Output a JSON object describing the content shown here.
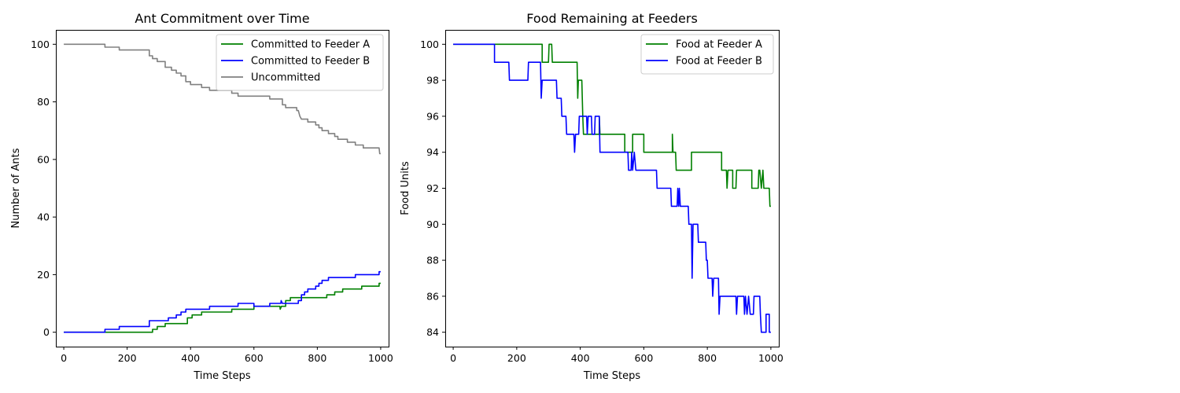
{
  "chart_data": [
    {
      "type": "line",
      "title": "Ant Commitment over Time",
      "xlabel": "Time Steps",
      "ylabel": "Number of Ants",
      "xlim": [
        -25,
        1025
      ],
      "ylim": [
        -5,
        105
      ],
      "xticks": [
        0,
        200,
        400,
        600,
        800,
        1000
      ],
      "yticks": [
        0,
        20,
        40,
        60,
        80,
        100
      ],
      "legend": "upper right",
      "series": [
        {
          "name": "Committed to Feeder A",
          "color": "#008000",
          "points": [
            [
              0,
              0
            ],
            [
              280,
              0
            ],
            [
              280,
              1
            ],
            [
              295,
              1
            ],
            [
              295,
              2
            ],
            [
              320,
              2
            ],
            [
              320,
              3
            ],
            [
              390,
              3
            ],
            [
              390,
              5
            ],
            [
              405,
              5
            ],
            [
              405,
              6
            ],
            [
              435,
              6
            ],
            [
              435,
              7
            ],
            [
              530,
              7
            ],
            [
              530,
              8
            ],
            [
              600,
              8
            ],
            [
              600,
              9
            ],
            [
              682,
              9
            ],
            [
              683,
              8
            ],
            [
              687,
              9
            ],
            [
              700,
              9
            ],
            [
              700,
              11
            ],
            [
              715,
              11
            ],
            [
              715,
              12
            ],
            [
              830,
              12
            ],
            [
              830,
              13
            ],
            [
              855,
              13
            ],
            [
              855,
              14
            ],
            [
              880,
              14
            ],
            [
              880,
              15
            ],
            [
              940,
              15
            ],
            [
              940,
              16
            ],
            [
              995,
              16
            ],
            [
              995,
              17
            ],
            [
              1000,
              17
            ]
          ]
        },
        {
          "name": "Committed to Feeder B",
          "color": "#0000ff",
          "points": [
            [
              0,
              0
            ],
            [
              130,
              0
            ],
            [
              130,
              1
            ],
            [
              175,
              1
            ],
            [
              175,
              2
            ],
            [
              270,
              2
            ],
            [
              270,
              4
            ],
            [
              330,
              4
            ],
            [
              330,
              5
            ],
            [
              355,
              5
            ],
            [
              355,
              6
            ],
            [
              370,
              6
            ],
            [
              370,
              7
            ],
            [
              385,
              7
            ],
            [
              385,
              8
            ],
            [
              460,
              8
            ],
            [
              460,
              9
            ],
            [
              550,
              9
            ],
            [
              550,
              10
            ],
            [
              600,
              10
            ],
            [
              600,
              9
            ],
            [
              650,
              9
            ],
            [
              650,
              10
            ],
            [
              685,
              10
            ],
            [
              686,
              11
            ],
            [
              690,
              10
            ],
            [
              740,
              10
            ],
            [
              740,
              11
            ],
            [
              750,
              11
            ],
            [
              750,
              13
            ],
            [
              760,
              13
            ],
            [
              760,
              14
            ],
            [
              770,
              14
            ],
            [
              770,
              15
            ],
            [
              795,
              15
            ],
            [
              795,
              16
            ],
            [
              805,
              16
            ],
            [
              805,
              17
            ],
            [
              815,
              17
            ],
            [
              815,
              18
            ],
            [
              835,
              18
            ],
            [
              835,
              19
            ],
            [
              920,
              19
            ],
            [
              920,
              20
            ],
            [
              995,
              20
            ],
            [
              995,
              21
            ],
            [
              1000,
              21
            ]
          ]
        },
        {
          "name": "Uncommitted",
          "color": "#808080",
          "points": [
            [
              0,
              100
            ],
            [
              130,
              100
            ],
            [
              130,
              99
            ],
            [
              175,
              99
            ],
            [
              175,
              98
            ],
            [
              270,
              98
            ],
            [
              270,
              96
            ],
            [
              280,
              96
            ],
            [
              280,
              95
            ],
            [
              295,
              95
            ],
            [
              295,
              94
            ],
            [
              320,
              94
            ],
            [
              320,
              92
            ],
            [
              340,
              92
            ],
            [
              340,
              91
            ],
            [
              355,
              91
            ],
            [
              355,
              90
            ],
            [
              370,
              90
            ],
            [
              370,
              89
            ],
            [
              385,
              89
            ],
            [
              385,
              87
            ],
            [
              400,
              87
            ],
            [
              400,
              86
            ],
            [
              435,
              86
            ],
            [
              435,
              85
            ],
            [
              460,
              85
            ],
            [
              460,
              84
            ],
            [
              530,
              84
            ],
            [
              530,
              83
            ],
            [
              550,
              83
            ],
            [
              550,
              82
            ],
            [
              650,
              82
            ],
            [
              650,
              81
            ],
            [
              690,
              81
            ],
            [
              690,
              79
            ],
            [
              700,
              79
            ],
            [
              700,
              78
            ],
            [
              735,
              78
            ],
            [
              735,
              77
            ],
            [
              740,
              77
            ],
            [
              745,
              75
            ],
            [
              750,
              74
            ],
            [
              770,
              74
            ],
            [
              770,
              73
            ],
            [
              795,
              73
            ],
            [
              795,
              72
            ],
            [
              805,
              72
            ],
            [
              805,
              71
            ],
            [
              815,
              71
            ],
            [
              815,
              70
            ],
            [
              835,
              70
            ],
            [
              835,
              69
            ],
            [
              855,
              69
            ],
            [
              855,
              68
            ],
            [
              865,
              68
            ],
            [
              865,
              67
            ],
            [
              895,
              67
            ],
            [
              895,
              66
            ],
            [
              920,
              66
            ],
            [
              920,
              65
            ],
            [
              945,
              65
            ],
            [
              945,
              64
            ],
            [
              995,
              64
            ],
            [
              997,
              62
            ],
            [
              1000,
              62
            ]
          ]
        }
      ]
    },
    {
      "type": "line",
      "title": "Food Remaining at Feeders",
      "xlabel": "Time Steps",
      "ylabel": "Food Units",
      "xlim": [
        -25,
        1025
      ],
      "ylim": [
        83.2,
        100.8
      ],
      "xticks": [
        0,
        200,
        400,
        600,
        800,
        1000
      ],
      "yticks": [
        84,
        86,
        88,
        90,
        92,
        94,
        96,
        98,
        100
      ],
      "legend": "upper right",
      "series": [
        {
          "name": "Food at Feeder A",
          "color": "#008000",
          "points": [
            [
              0,
              100
            ],
            [
              280,
              100
            ],
            [
              280,
              99
            ],
            [
              300,
              99
            ],
            [
              302,
              100
            ],
            [
              310,
              100
            ],
            [
              312,
              99
            ],
            [
              390,
              99
            ],
            [
              392,
              97
            ],
            [
              394,
              98
            ],
            [
              405,
              98
            ],
            [
              408,
              96
            ],
            [
              410,
              95
            ],
            [
              460,
              95
            ],
            [
              460,
              96
            ],
            [
              462,
              95
            ],
            [
              540,
              95
            ],
            [
              540,
              94
            ],
            [
              565,
              94
            ],
            [
              565,
              95
            ],
            [
              600,
              95
            ],
            [
              600,
              94
            ],
            [
              690,
              94
            ],
            [
              690,
              95
            ],
            [
              692,
              94
            ],
            [
              700,
              94
            ],
            [
              702,
              93
            ],
            [
              750,
              93
            ],
            [
              750,
              94
            ],
            [
              845,
              94
            ],
            [
              845,
              93
            ],
            [
              860,
              93
            ],
            [
              862,
              92
            ],
            [
              865,
              93
            ],
            [
              880,
              93
            ],
            [
              880,
              92
            ],
            [
              890,
              92
            ],
            [
              892,
              93
            ],
            [
              940,
              93
            ],
            [
              940,
              92
            ],
            [
              960,
              92
            ],
            [
              962,
              93
            ],
            [
              965,
              93
            ],
            [
              970,
              92
            ],
            [
              975,
              93
            ],
            [
              978,
              92
            ],
            [
              995,
              92
            ],
            [
              997,
              91
            ],
            [
              1000,
              91
            ]
          ]
        },
        {
          "name": "Food at Feeder B",
          "color": "#0000ff",
          "points": [
            [
              0,
              100
            ],
            [
              130,
              100
            ],
            [
              130,
              99
            ],
            [
              175,
              99
            ],
            [
              177,
              98
            ],
            [
              235,
              98
            ],
            [
              237,
              99
            ],
            [
              275,
              99
            ],
            [
              277,
              97
            ],
            [
              280,
              98
            ],
            [
              325,
              98
            ],
            [
              327,
              97
            ],
            [
              340,
              97
            ],
            [
              342,
              96
            ],
            [
              355,
              96
            ],
            [
              357,
              95
            ],
            [
              380,
              95
            ],
            [
              382,
              94
            ],
            [
              385,
              95
            ],
            [
              395,
              95
            ],
            [
              397,
              96
            ],
            [
              420,
              96
            ],
            [
              422,
              95
            ],
            [
              425,
              96
            ],
            [
              435,
              96
            ],
            [
              437,
              95
            ],
            [
              445,
              95
            ],
            [
              447,
              96
            ],
            [
              460,
              96
            ],
            [
              462,
              94
            ],
            [
              550,
              94
            ],
            [
              552,
              93
            ],
            [
              560,
              93
            ],
            [
              562,
              94
            ],
            [
              565,
              93
            ],
            [
              570,
              94
            ],
            [
              575,
              93
            ],
            [
              640,
              93
            ],
            [
              642,
              92
            ],
            [
              685,
              92
            ],
            [
              687,
              91
            ],
            [
              705,
              91
            ],
            [
              707,
              92
            ],
            [
              710,
              91
            ],
            [
              712,
              92
            ],
            [
              715,
              91
            ],
            [
              740,
              91
            ],
            [
              742,
              90
            ],
            [
              750,
              90
            ],
            [
              752,
              87
            ],
            [
              755,
              90
            ],
            [
              770,
              90
            ],
            [
              772,
              89
            ],
            [
              795,
              89
            ],
            [
              797,
              88
            ],
            [
              800,
              88
            ],
            [
              802,
              87
            ],
            [
              815,
              87
            ],
            [
              817,
              86
            ],
            [
              820,
              87
            ],
            [
              835,
              87
            ],
            [
              837,
              85
            ],
            [
              840,
              86
            ],
            [
              890,
              86
            ],
            [
              892,
              85
            ],
            [
              895,
              86
            ],
            [
              915,
              86
            ],
            [
              917,
              85
            ],
            [
              920,
              86
            ],
            [
              925,
              85
            ],
            [
              930,
              86
            ],
            [
              935,
              85
            ],
            [
              945,
              85
            ],
            [
              947,
              86
            ],
            [
              965,
              86
            ],
            [
              967,
              85
            ],
            [
              970,
              84
            ],
            [
              985,
              84
            ],
            [
              985,
              85
            ],
            [
              995,
              85
            ],
            [
              995,
              84
            ],
            [
              1000,
              84
            ]
          ]
        }
      ]
    }
  ]
}
